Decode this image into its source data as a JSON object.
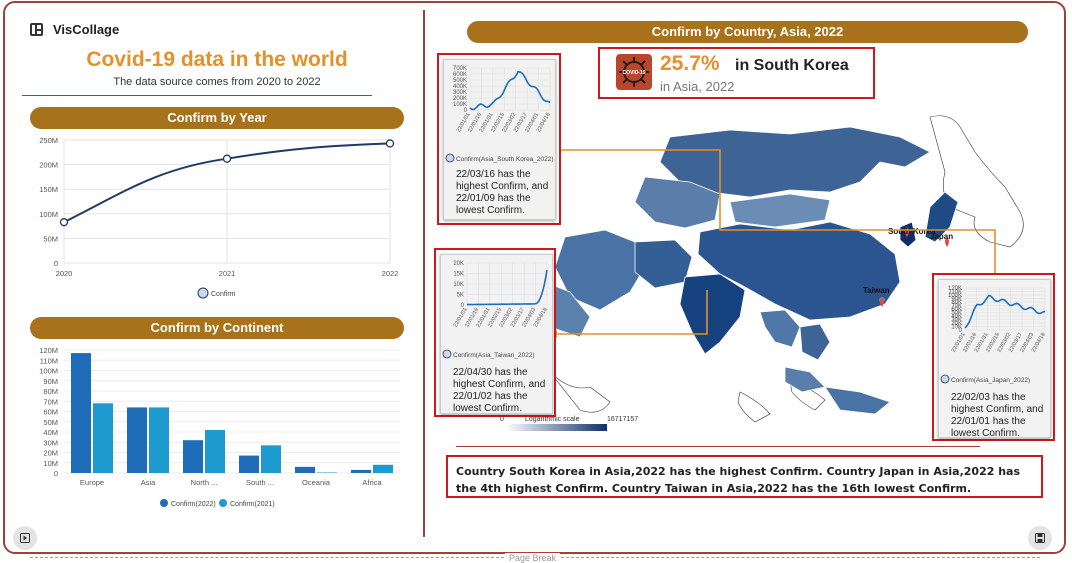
{
  "brand": {
    "name": "VisCollage",
    "icon": "layout-icon"
  },
  "header": {
    "title": "Covid-19 data in the world",
    "subtitle": "The data source comes from 2020 to 2022"
  },
  "year_panel": {
    "title": "Confirm by Year",
    "legend": "Confirm",
    "y_ticks": [
      "250M",
      "200M",
      "150M",
      "100M",
      "50M",
      "0"
    ],
    "x_ticks": [
      "2020",
      "2021",
      "2022"
    ]
  },
  "continent_panel": {
    "title": "Confirm by Continent",
    "y_ticks": [
      "120M",
      "110M",
      "100M",
      "90M",
      "80M",
      "70M",
      "60M",
      "50M",
      "40M",
      "30M",
      "20M",
      "10M",
      "0"
    ],
    "legend_2022": "Confirm(2022)",
    "legend_2021": "Confirm(2021)"
  },
  "map_panel": {
    "title": "Confirm by Country, Asia, 2022",
    "kpi": {
      "percent": "25.7%",
      "country": "in South Korea",
      "sub": "in Asia, 2022",
      "icon": "covid-virus-icon",
      "icon_text": "COVID-19"
    },
    "scale": {
      "label": "Logarithmic scale",
      "min": "0",
      "max": "16717157"
    },
    "labels": {
      "korea": "South Korea",
      "japan": "Japan",
      "taiwan": "Taiwan"
    },
    "korea_card": {
      "y_ticks": [
        "700K",
        "600K",
        "500K",
        "400K",
        "300K",
        "200K",
        "100K",
        "0"
      ],
      "dates": [
        "22/01/01",
        "22/01/16",
        "22/01/31",
        "22/02/15",
        "22/03/02",
        "22/03/17",
        "22/04/01",
        "22/04/18"
      ],
      "legend": "Confirm(Asia_South Korea_2022)",
      "note": "22/03/16 has the highest Confirm, and 22/01/09 has the lowest Confirm."
    },
    "taiwan_card": {
      "y_ticks": [
        "20K",
        "15K",
        "10K",
        "5K",
        "0"
      ],
      "dates": [
        "22/01/01",
        "22/01/16",
        "22/01/31",
        "22/02/15",
        "22/03/02",
        "22/03/17",
        "22/04/03",
        "22/04/18"
      ],
      "legend": "Confirm(Asia_Taiwan_2022)",
      "note": "22/04/30 has the highest Confirm, and 22/01/02 has the lowest Confirm."
    },
    "japan_card": {
      "y_ticks": [
        "120K",
        "110K",
        "100K",
        "90K",
        "80K",
        "70K",
        "60K",
        "50K",
        "40K",
        "30K",
        "20K",
        "10K",
        "0"
      ],
      "dates": [
        "22/01/01",
        "22/01/16",
        "22/01/31",
        "22/02/15",
        "22/03/02",
        "22/03/17",
        "22/04/03",
        "22/04/18"
      ],
      "legend": "Confirm(Asia_Japan_2022)",
      "note": "22/02/03 has the highest Confirm, and 22/01/01 has the lowest Confirm."
    }
  },
  "summary": "Country South Korea in Asia,2022 has the highest Confirm. Country Japan in Asia,2022 has the 4th highest Confirm. Country Taiwan in Asia,2022 has the 16th lowest Confirm.",
  "controls": {
    "play_icon": "play-icon",
    "save_icon": "save-icon"
  },
  "page_break": "Page Break",
  "colors": {
    "accent": "#e5902a",
    "pill": "#a8711c",
    "frame": "#a0403a",
    "highlight": "#d0181c",
    "bar_2022": "#1f6db8",
    "bar_2021": "#1f9ad0",
    "line": "#1e3a66"
  },
  "chart_data": [
    {
      "type": "line",
      "title": "Confirm by Year",
      "x": [
        "2020",
        "2021",
        "2022"
      ],
      "series": [
        {
          "name": "Confirm",
          "values": [
            83000000,
            212000000,
            243000000
          ]
        }
      ],
      "ylim": [
        0,
        250000000
      ],
      "grid": true,
      "legend": "bottom"
    },
    {
      "type": "bar",
      "title": "Confirm by Continent",
      "categories": [
        "Europe",
        "Asia",
        "North ...",
        "South ...",
        "Oceania",
        "Africa"
      ],
      "series": [
        {
          "name": "Confirm(2022)",
          "values": [
            117000000,
            64000000,
            32000000,
            17000000,
            6000000,
            3000000
          ]
        },
        {
          "name": "Confirm(2021)",
          "values": [
            68000000,
            64000000,
            42000000,
            27000000,
            500000,
            8000000
          ]
        }
      ],
      "ylim": [
        0,
        120000000
      ],
      "grid": true,
      "legend": "bottom"
    }
  ]
}
